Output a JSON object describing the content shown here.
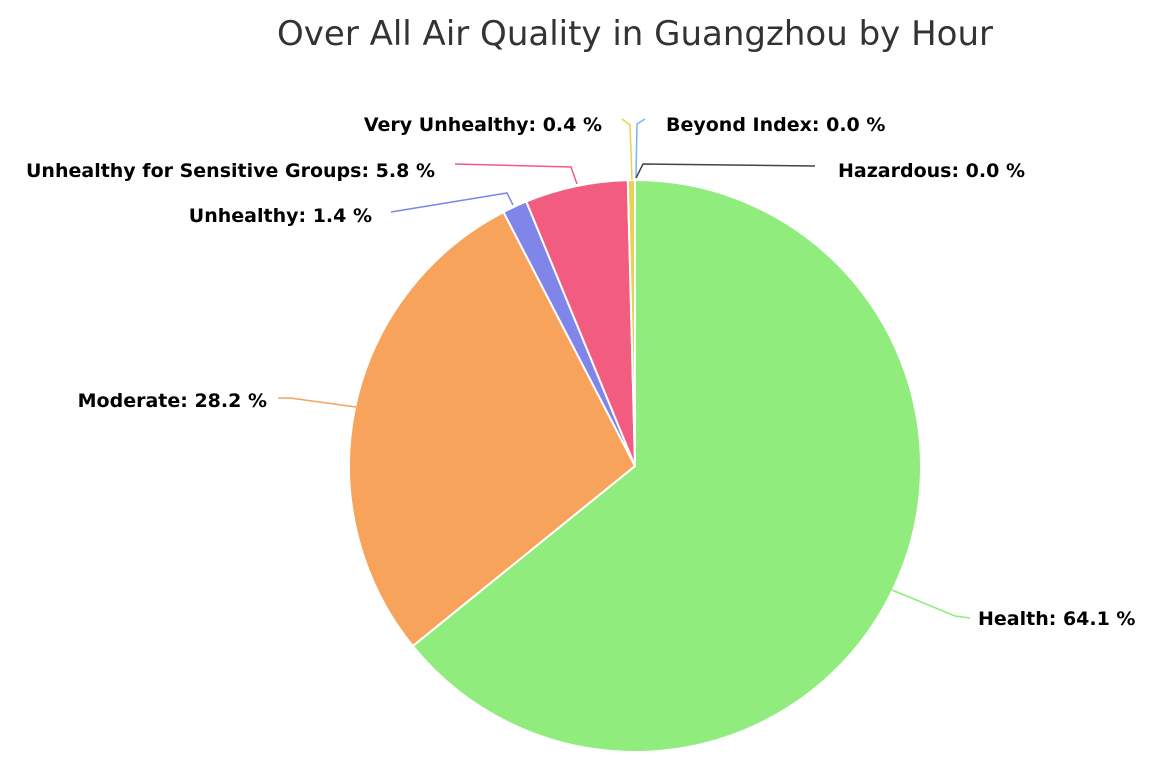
{
  "chart_data": {
    "type": "pie",
    "title": "Over All Air Quality in Guangzhou by Hour",
    "slices": [
      {
        "label": "Health",
        "value": 64.1,
        "display": "Health: 64.1 %",
        "color": "#90ed7d"
      },
      {
        "label": "Moderate",
        "value": 28.2,
        "display": "Moderate: 28.2 %",
        "color": "#f7a35c"
      },
      {
        "label": "Unhealthy",
        "value": 1.4,
        "display": "Unhealthy: 1.4 %",
        "color": "#8085e9"
      },
      {
        "label": "Unhealthy for Sensitive Groups",
        "value": 5.8,
        "display": "Unhealthy for Sensitive Groups: 5.8 %",
        "color": "#f15c80"
      },
      {
        "label": "Very Unhealthy",
        "value": 0.4,
        "display": "Very Unhealthy: 0.4 %",
        "color": "#e4d354"
      },
      {
        "label": "Beyond Index",
        "value": 0.0,
        "display": "Beyond Index: 0.0 %",
        "color": "#7cb5ec"
      },
      {
        "label": "Hazardous",
        "value": 0.0,
        "display": "Hazardous: 0.0 %",
        "color": "#434348"
      }
    ]
  }
}
